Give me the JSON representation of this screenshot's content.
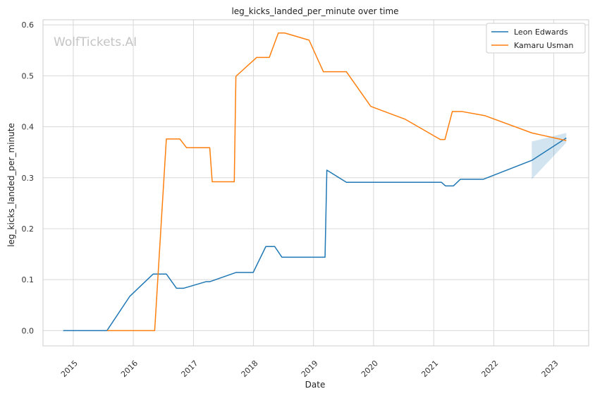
{
  "watermark": "WolfTickets.AI",
  "chart_data": {
    "type": "line",
    "title": "leg_kicks_landed_per_minute over time",
    "xlabel": "Date",
    "ylabel": "leg_kicks_landed_per_minute",
    "xlim": [
      "2014-07-01",
      "2023-08-01"
    ],
    "ylim": [
      -0.03,
      0.61
    ],
    "xticks": [
      "2015",
      "2016",
      "2017",
      "2018",
      "2019",
      "2020",
      "2021",
      "2022",
      "2023"
    ],
    "yticks": [
      "0.0",
      "0.1",
      "0.2",
      "0.3",
      "0.4",
      "0.5",
      "0.6"
    ],
    "grid": true,
    "legend_position": "top-right",
    "colors": {
      "Leon Edwards": "#1f77b4",
      "Kamaru Usman": "#ff7f0e",
      "band": "#1f77b4"
    },
    "series": [
      {
        "name": "Leon Edwards",
        "points": [
          [
            "2014-11-01",
            0.0
          ],
          [
            "2015-07-25",
            0.0
          ],
          [
            "2015-12-10",
            0.067
          ],
          [
            "2016-05-01",
            0.111
          ],
          [
            "2016-07-20",
            0.111
          ],
          [
            "2016-09-20",
            0.083
          ],
          [
            "2016-11-01",
            0.083
          ],
          [
            "2017-03-18",
            0.096
          ],
          [
            "2017-04-10",
            0.096
          ],
          [
            "2017-09-16",
            0.114
          ],
          [
            "2017-12-30",
            0.114
          ],
          [
            "2018-03-17",
            0.165
          ],
          [
            "2018-05-10",
            0.165
          ],
          [
            "2018-06-23",
            0.144
          ],
          [
            "2019-03-12",
            0.144
          ],
          [
            "2019-03-23",
            0.315
          ],
          [
            "2019-07-20",
            0.291
          ],
          [
            "2021-02-17",
            0.291
          ],
          [
            "2021-03-13",
            0.284
          ],
          [
            "2021-05-01",
            0.284
          ],
          [
            "2021-06-12",
            0.297
          ],
          [
            "2021-10-30",
            0.297
          ],
          [
            "2022-08-20",
            0.334
          ],
          [
            "2023-03-18",
            0.378
          ]
        ]
      },
      {
        "name": "Kamaru Usman",
        "points": [
          [
            "2015-07-25",
            0.0
          ],
          [
            "2016-05-10",
            0.0
          ],
          [
            "2016-07-20",
            0.376
          ],
          [
            "2016-10-10",
            0.376
          ],
          [
            "2016-11-20",
            0.359
          ],
          [
            "2017-04-10",
            0.359
          ],
          [
            "2017-04-25",
            0.292
          ],
          [
            "2017-09-06",
            0.292
          ],
          [
            "2017-09-16",
            0.499
          ],
          [
            "2018-01-20",
            0.536
          ],
          [
            "2018-04-07",
            0.536
          ],
          [
            "2018-06-01",
            0.584
          ],
          [
            "2018-07-10",
            0.584
          ],
          [
            "2018-12-05",
            0.57
          ],
          [
            "2019-03-02",
            0.508
          ],
          [
            "2019-07-20",
            0.508
          ],
          [
            "2019-12-15",
            0.44
          ],
          [
            "2020-07-10",
            0.415
          ],
          [
            "2021-02-10",
            0.375
          ],
          [
            "2021-03-10",
            0.375
          ],
          [
            "2021-04-24",
            0.43
          ],
          [
            "2021-06-20",
            0.43
          ],
          [
            "2021-11-06",
            0.422
          ],
          [
            "2022-08-20",
            0.388
          ],
          [
            "2023-03-18",
            0.373
          ]
        ]
      }
    ],
    "confidence_band": {
      "series": "Leon Edwards",
      "points": [
        [
          "2022-08-20",
          0.297,
          0.371
        ],
        [
          "2023-03-18",
          0.369,
          0.388
        ]
      ]
    }
  }
}
